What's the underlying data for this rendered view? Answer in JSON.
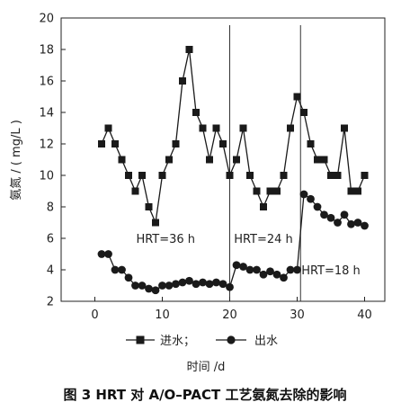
{
  "figure": {
    "caption": "图 3   HRT 对 A/O–PACT 工艺氨氮去除的影响"
  },
  "chart_data": {
    "type": "line",
    "xlabel": "时间 /d",
    "ylabel": "氨氮 / ( mg/L )",
    "xlim": [
      -5,
      43
    ],
    "ylim": [
      2,
      20
    ],
    "xticks": [
      0,
      10,
      20,
      30,
      40
    ],
    "yticks": [
      2,
      4,
      6,
      8,
      10,
      12,
      14,
      16,
      18,
      20
    ],
    "grid": false,
    "legend_position": "bottom",
    "series": [
      {
        "name": "进水",
        "marker": "square",
        "line": true,
        "color": "#1a1a1a",
        "x": [
          1,
          2,
          3,
          4,
          5,
          6,
          7,
          8,
          9,
          10,
          11,
          12,
          13,
          14,
          15,
          16,
          17,
          18,
          19,
          20,
          21,
          22,
          23,
          24,
          25,
          26,
          27,
          28,
          29,
          30,
          31,
          32,
          33,
          34,
          35,
          36,
          37,
          38,
          39,
          40
        ],
        "values": [
          12,
          13,
          12,
          11,
          10,
          9,
          10,
          8,
          7,
          10,
          11,
          12,
          16,
          18,
          14,
          13,
          11,
          13,
          12,
          10,
          11,
          13,
          10,
          9,
          8,
          9,
          9,
          10,
          13,
          15,
          14,
          12,
          11,
          11,
          10,
          10,
          13,
          9,
          9,
          10
        ]
      },
      {
        "name": "出水",
        "marker": "circle",
        "line": true,
        "color": "#1a1a1a",
        "x": [
          1,
          2,
          3,
          4,
          5,
          6,
          7,
          8,
          9,
          10,
          11,
          12,
          13,
          14,
          15,
          16,
          17,
          18,
          19,
          20,
          21,
          22,
          23,
          24,
          25,
          26,
          27,
          28,
          29,
          30,
          31,
          32,
          33,
          34,
          35,
          36,
          37,
          38,
          39,
          40
        ],
        "values": [
          5,
          5,
          4,
          4,
          3.5,
          3,
          3,
          2.8,
          2.7,
          3,
          3,
          3.1,
          3.2,
          3.3,
          3.1,
          3.2,
          3.1,
          3.2,
          3.1,
          2.9,
          4.3,
          4.2,
          4,
          4,
          3.7,
          3.9,
          3.7,
          3.5,
          4,
          4,
          8.8,
          8.5,
          8,
          7.5,
          7.3,
          7,
          7.5,
          6.9,
          7,
          6.8
        ]
      }
    ],
    "vlines": [
      20,
      30.5
    ],
    "annotations": [
      {
        "text": "HRT=36 h",
        "x": 10.5,
        "y": 6
      },
      {
        "text": "HRT=24 h",
        "x": 25,
        "y": 6
      },
      {
        "text": "HRT=18 h",
        "x": 35,
        "y": 4
      }
    ],
    "legend_separator": "；"
  }
}
